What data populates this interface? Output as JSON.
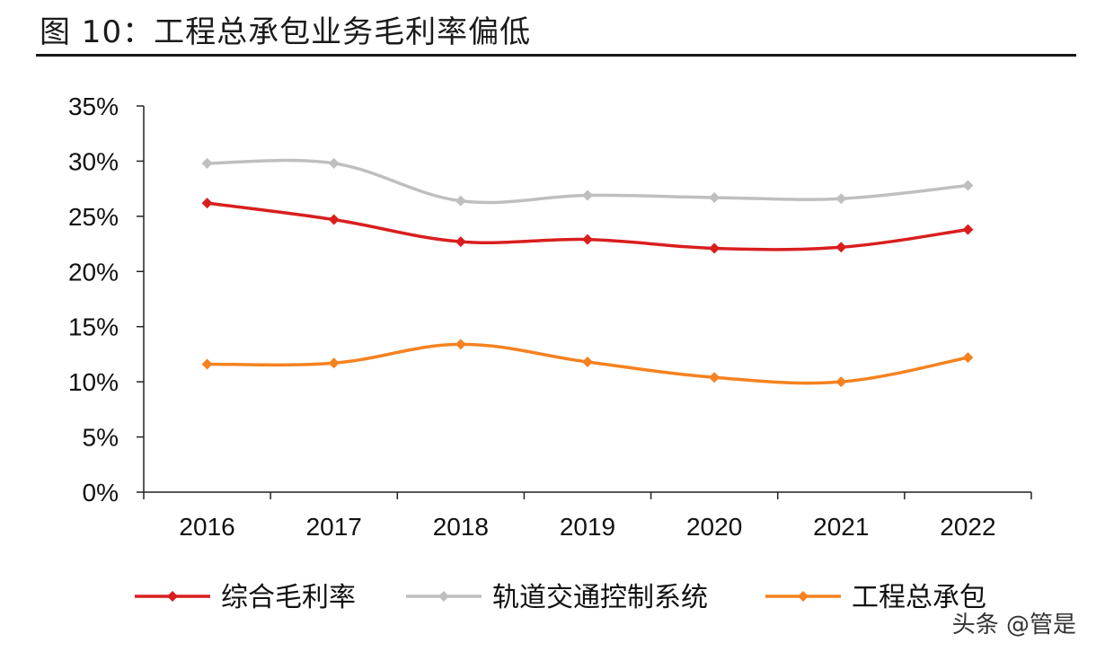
{
  "title": "图 10：工程总承包业务毛利率偏低",
  "watermark": "头条 @管是",
  "chart_data": {
    "type": "line",
    "title": "图 10：工程总承包业务毛利率偏低",
    "xlabel": "",
    "ylabel": "",
    "categories": [
      "2016",
      "2017",
      "2018",
      "2019",
      "2020",
      "2021",
      "2022"
    ],
    "ylim": [
      0,
      35
    ],
    "yticks": [
      0,
      5,
      10,
      15,
      20,
      25,
      30,
      35
    ],
    "ytick_labels": [
      "0%",
      "5%",
      "10%",
      "15%",
      "20%",
      "25%",
      "30%",
      "35%"
    ],
    "grid": false,
    "smooth": true,
    "legend_position": "bottom",
    "series": [
      {
        "name": "综合毛利率",
        "color": "#d91e1e",
        "values": [
          26.2,
          24.7,
          22.7,
          22.9,
          22.1,
          22.2,
          23.8
        ]
      },
      {
        "name": "轨道交通控制系统",
        "color": "#bfbfbf",
        "values": [
          29.8,
          29.8,
          26.4,
          26.9,
          26.7,
          26.6,
          27.8
        ]
      },
      {
        "name": "工程总承包",
        "color": "#f5821f",
        "values": [
          11.6,
          11.7,
          13.4,
          11.8,
          10.4,
          10.0,
          12.2
        ]
      }
    ]
  }
}
